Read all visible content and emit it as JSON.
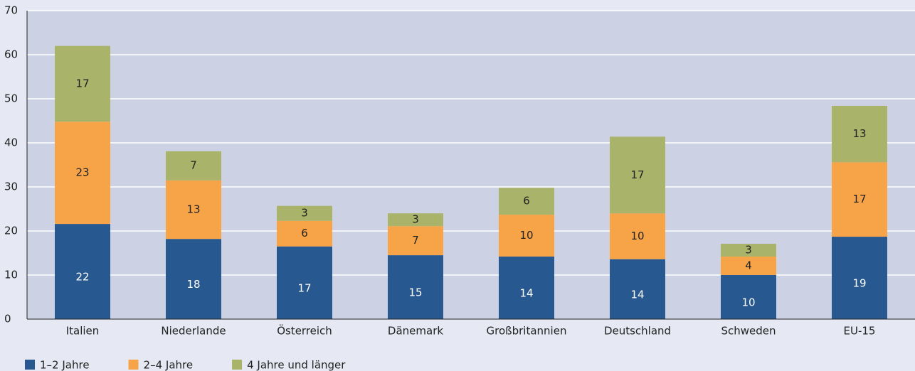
{
  "chart_data": {
    "type": "stacked-bar",
    "categories": [
      "Italien",
      "Niederlande",
      "Österreich",
      "Dänemark",
      "Großbritannien",
      "Deutschland",
      "Schweden",
      "EU-15"
    ],
    "series": [
      {
        "name": "1–2 Jahre",
        "color": "#27588f",
        "label_color": "#ffffff",
        "values": [
          21.6,
          18.2,
          16.5,
          14.5,
          14.2,
          13.6,
          10.0,
          18.7
        ],
        "value_labels": [
          "22",
          "18",
          "17",
          "15",
          "14",
          "14",
          "10",
          "19"
        ]
      },
      {
        "name": "2–4 Jahre",
        "color": "#f7a448",
        "label_color": "#222222",
        "values": [
          23.2,
          13.3,
          5.8,
          6.6,
          9.5,
          10.4,
          4.2,
          16.9
        ],
        "value_labels": [
          "23",
          "13",
          "6",
          "7",
          "10",
          "10",
          "4",
          "17"
        ]
      },
      {
        "name": "4 Jahre und länger",
        "color": "#a9b46a",
        "label_color": "#222222",
        "values": [
          17.2,
          6.6,
          3.4,
          2.9,
          6.1,
          17.4,
          2.9,
          12.8
        ],
        "value_labels": [
          "17",
          "7",
          "3",
          "3",
          "6",
          "17",
          "3",
          "13"
        ]
      }
    ],
    "ylim": [
      0,
      70
    ],
    "yticks": [
      0,
      10,
      20,
      30,
      40,
      50,
      60,
      70
    ],
    "grid": true
  }
}
